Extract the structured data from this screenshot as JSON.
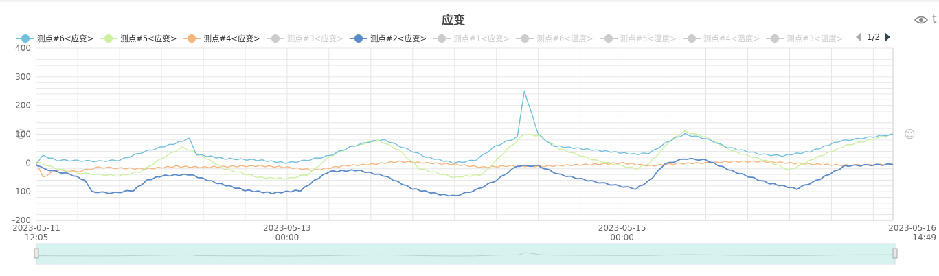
{
  "chart_data": {
    "type": "line",
    "title": "应变",
    "ylim": [
      -200,
      400
    ],
    "yticks": [
      400,
      300,
      200,
      100,
      0,
      -100,
      -200
    ],
    "x_range": [
      "2023-05-11 12:05",
      "2023-05-16 14:49"
    ],
    "xtick_labels": [
      {
        "date": "2023-05-11",
        "time": "12:05",
        "at": "2023-05-11 12:05"
      },
      {
        "date": "2023-05-13",
        "time": "00:00",
        "at": "2023-05-13 00:00"
      },
      {
        "date": "2023-05-15",
        "time": "00:00",
        "at": "2023-05-15 00:00"
      },
      {
        "date": "2023-05-16",
        "time": "14:49",
        "at": "2023-05-16 14:49"
      }
    ],
    "grid": true,
    "legend_position": "top",
    "legend_page": "1/2",
    "series": [
      {
        "name": "测点#6<应变>",
        "color": "#73c0de",
        "active": true,
        "points": [
          [
            "2023-05-11 12:05",
            0
          ],
          [
            "2023-05-11 13:00",
            25
          ],
          [
            "2023-05-11 15:00",
            10
          ],
          [
            "2023-05-11 18:00",
            8
          ],
          [
            "2023-05-11 21:00",
            6
          ],
          [
            "2023-05-12 00:00",
            10
          ],
          [
            "2023-05-12 03:00",
            35
          ],
          [
            "2023-05-12 06:00",
            55
          ],
          [
            "2023-05-12 08:00",
            68
          ],
          [
            "2023-05-12 10:00",
            85
          ],
          [
            "2023-05-12 11:00",
            30
          ],
          [
            "2023-05-12 15:00",
            15
          ],
          [
            "2023-05-12 20:00",
            10
          ],
          [
            "2023-05-13 00:00",
            0
          ],
          [
            "2023-05-13 03:00",
            10
          ],
          [
            "2023-05-13 06:00",
            25
          ],
          [
            "2023-05-13 09:00",
            55
          ],
          [
            "2023-05-13 12:00",
            75
          ],
          [
            "2023-05-13 14:00",
            80
          ],
          [
            "2023-05-13 17:00",
            50
          ],
          [
            "2023-05-13 20:00",
            20
          ],
          [
            "2023-05-14 00:00",
            0
          ],
          [
            "2023-05-14 03:00",
            10
          ],
          [
            "2023-05-14 06:00",
            60
          ],
          [
            "2023-05-14 09:00",
            90
          ],
          [
            "2023-05-14 10:00",
            250
          ],
          [
            "2023-05-14 12:00",
            100
          ],
          [
            "2023-05-14 14:00",
            60
          ],
          [
            "2023-05-14 18:00",
            50
          ],
          [
            "2023-05-14 22:00",
            40
          ],
          [
            "2023-05-15 02:00",
            30
          ],
          [
            "2023-05-15 04:00",
            35
          ],
          [
            "2023-05-15 07:00",
            80
          ],
          [
            "2023-05-15 09:00",
            100
          ],
          [
            "2023-05-15 12:00",
            85
          ],
          [
            "2023-05-15 15:00",
            55
          ],
          [
            "2023-05-15 20:00",
            30
          ],
          [
            "2023-05-15 23:00",
            25
          ],
          [
            "2023-05-16 03:00",
            40
          ],
          [
            "2023-05-16 07:00",
            75
          ],
          [
            "2023-05-16 10:00",
            85
          ],
          [
            "2023-05-16 14:49",
            100
          ]
        ]
      },
      {
        "name": "测点#5<应变>",
        "color": "#ccf0a0",
        "active": true,
        "points": [
          [
            "2023-05-11 12:05",
            5
          ],
          [
            "2023-05-11 15:00",
            -20
          ],
          [
            "2023-05-11 18:00",
            -35
          ],
          [
            "2023-05-11 21:00",
            -40
          ],
          [
            "2023-05-12 00:00",
            -45
          ],
          [
            "2023-05-12 03:00",
            -30
          ],
          [
            "2023-05-12 06:00",
            15
          ],
          [
            "2023-05-12 09:00",
            55
          ],
          [
            "2023-05-12 11:00",
            35
          ],
          [
            "2023-05-12 15:00",
            -20
          ],
          [
            "2023-05-12 20:00",
            -50
          ],
          [
            "2023-05-13 00:00",
            -55
          ],
          [
            "2023-05-13 03:00",
            -40
          ],
          [
            "2023-05-13 06:00",
            20
          ],
          [
            "2023-05-13 09:00",
            55
          ],
          [
            "2023-05-13 13:00",
            80
          ],
          [
            "2023-05-13 16:00",
            45
          ],
          [
            "2023-05-13 19:00",
            -20
          ],
          [
            "2023-05-14 00:00",
            -50
          ],
          [
            "2023-05-14 04:00",
            -40
          ],
          [
            "2023-05-14 07:00",
            35
          ],
          [
            "2023-05-14 10:00",
            100
          ],
          [
            "2023-05-14 12:00",
            95
          ],
          [
            "2023-05-14 15:00",
            50
          ],
          [
            "2023-05-14 20:00",
            10
          ],
          [
            "2023-05-15 02:00",
            -20
          ],
          [
            "2023-05-15 04:00",
            0
          ],
          [
            "2023-05-15 07:00",
            80
          ],
          [
            "2023-05-15 09:00",
            110
          ],
          [
            "2023-05-15 12:00",
            90
          ],
          [
            "2023-05-15 16:00",
            40
          ],
          [
            "2023-05-15 21:00",
            5
          ],
          [
            "2023-05-16 00:00",
            -25
          ],
          [
            "2023-05-16 04:00",
            20
          ],
          [
            "2023-05-16 08:00",
            60
          ],
          [
            "2023-05-16 14:49",
            100
          ]
        ]
      },
      {
        "name": "测点#4<应变>",
        "color": "#f5b57f",
        "active": true,
        "points": [
          [
            "2023-05-11 12:05",
            0
          ],
          [
            "2023-05-11 13:00",
            -50
          ],
          [
            "2023-05-11 15:00",
            -25
          ],
          [
            "2023-05-11 18:00",
            -30
          ],
          [
            "2023-05-11 21:00",
            -15
          ],
          [
            "2023-05-12 00:00",
            -18
          ],
          [
            "2023-05-12 04:00",
            -20
          ],
          [
            "2023-05-12 08:00",
            -12
          ],
          [
            "2023-05-12 12:00",
            -15
          ],
          [
            "2023-05-12 16:00",
            -12
          ],
          [
            "2023-05-12 20:00",
            -10
          ],
          [
            "2023-05-13 00:00",
            -15
          ],
          [
            "2023-05-13 04:00",
            -25
          ],
          [
            "2023-05-13 08:00",
            -10
          ],
          [
            "2023-05-13 12:00",
            -5
          ],
          [
            "2023-05-13 16:00",
            5
          ],
          [
            "2023-05-13 20:00",
            0
          ],
          [
            "2023-05-14 00:00",
            -5
          ],
          [
            "2023-05-14 04:00",
            -15
          ],
          [
            "2023-05-14 08:00",
            -10
          ],
          [
            "2023-05-14 12:00",
            -12
          ],
          [
            "2023-05-14 16:00",
            -8
          ],
          [
            "2023-05-14 20:00",
            -5
          ],
          [
            "2023-05-15 00:00",
            0
          ],
          [
            "2023-05-15 04:00",
            -10
          ],
          [
            "2023-05-15 08:00",
            -2
          ],
          [
            "2023-05-15 12:00",
            0
          ],
          [
            "2023-05-15 16:00",
            5
          ],
          [
            "2023-05-15 20:00",
            5
          ],
          [
            "2023-05-16 00:00",
            0
          ],
          [
            "2023-05-16 04:00",
            -5
          ],
          [
            "2023-05-16 08:00",
            -8
          ],
          [
            "2023-05-16 14:49",
            -5
          ]
        ]
      },
      {
        "name": "测点#3<应变>",
        "color": "#cccccc",
        "active": false,
        "points": []
      },
      {
        "name": "测点#2<应变>",
        "color": "#5b8ac9",
        "active": true,
        "points": [
          [
            "2023-05-11 12:05",
            -10
          ],
          [
            "2023-05-11 14:00",
            -25
          ],
          [
            "2023-05-11 17:00",
            -40
          ],
          [
            "2023-05-11 19:00",
            -60
          ],
          [
            "2023-05-11 20:00",
            -100
          ],
          [
            "2023-05-11 23:00",
            -105
          ],
          [
            "2023-05-12 02:00",
            -95
          ],
          [
            "2023-05-12 04:00",
            -60
          ],
          [
            "2023-05-12 06:00",
            -45
          ],
          [
            "2023-05-12 10:00",
            -40
          ],
          [
            "2023-05-12 14:00",
            -70
          ],
          [
            "2023-05-12 18:00",
            -95
          ],
          [
            "2023-05-12 22:00",
            -105
          ],
          [
            "2023-05-13 02:00",
            -95
          ],
          [
            "2023-05-13 04:00",
            -60
          ],
          [
            "2023-05-13 06:00",
            -30
          ],
          [
            "2023-05-13 10:00",
            -25
          ],
          [
            "2023-05-13 14:00",
            -45
          ],
          [
            "2023-05-13 18:00",
            -90
          ],
          [
            "2023-05-13 22:00",
            -110
          ],
          [
            "2023-05-14 00:00",
            -115
          ],
          [
            "2023-05-14 03:00",
            -95
          ],
          [
            "2023-05-14 06:00",
            -60
          ],
          [
            "2023-05-14 09:00",
            -10
          ],
          [
            "2023-05-14 12:00",
            -10
          ],
          [
            "2023-05-14 15:00",
            -40
          ],
          [
            "2023-05-14 20:00",
            -65
          ],
          [
            "2023-05-15 02:00",
            -90
          ],
          [
            "2023-05-15 04:00",
            -60
          ],
          [
            "2023-05-15 06:00",
            -5
          ],
          [
            "2023-05-15 09:00",
            15
          ],
          [
            "2023-05-15 12:00",
            10
          ],
          [
            "2023-05-15 16:00",
            -30
          ],
          [
            "2023-05-15 21:00",
            -70
          ],
          [
            "2023-05-16 01:00",
            -90
          ],
          [
            "2023-05-16 04:00",
            -60
          ],
          [
            "2023-05-16 08:00",
            -10
          ],
          [
            "2023-05-16 14:49",
            -5
          ]
        ]
      },
      {
        "name": "测点#1<应变>",
        "color": "#cccccc",
        "active": false,
        "points": []
      },
      {
        "name": "测点#6<温度>",
        "color": "#cccccc",
        "active": false,
        "points": []
      },
      {
        "name": "测点#5<温度>",
        "color": "#cccccc",
        "active": false,
        "points": []
      },
      {
        "name": "测点#4<温度>",
        "color": "#cccccc",
        "active": false,
        "points": []
      },
      {
        "name": "测点#3<温度>",
        "color": "#cccccc",
        "active": false,
        "points": []
      }
    ]
  },
  "colors": {
    "axis_text": "#666666",
    "grid": "#e6e6e6",
    "legend_inactive": "#cccccc",
    "zoom_fill": "#d7f3ef",
    "zoom_border": "#d2dbee"
  },
  "icons": {
    "toolbox_view": "eye-icon",
    "toolbox_other": "t-icon",
    "pager_prev": "triangle-left-icon",
    "pager_next": "triangle-right-icon"
  }
}
